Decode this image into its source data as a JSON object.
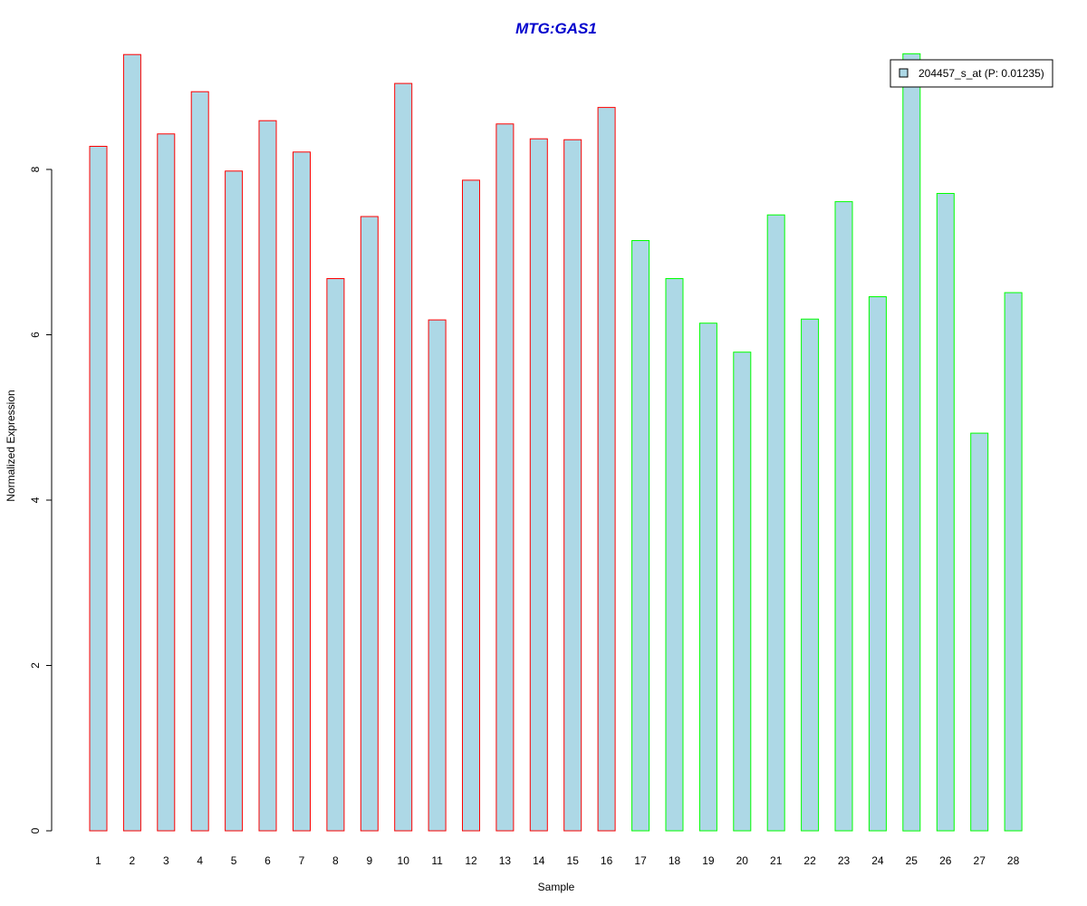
{
  "chart_data": {
    "type": "bar",
    "title": "MTG:GAS1",
    "xlabel": "Sample",
    "ylabel": "Normalized Expression",
    "categories": [
      "1",
      "2",
      "3",
      "4",
      "5",
      "6",
      "7",
      "8",
      "9",
      "10",
      "11",
      "12",
      "13",
      "14",
      "15",
      "16",
      "17",
      "18",
      "19",
      "20",
      "21",
      "22",
      "23",
      "24",
      "25",
      "26",
      "27",
      "28"
    ],
    "series": [
      {
        "name": "204457_s_at (P: 0.01235)",
        "values": [
          8.28,
          9.39,
          8.43,
          8.94,
          7.98,
          8.59,
          8.21,
          6.68,
          7.43,
          9.04,
          6.18,
          7.87,
          8.55,
          8.37,
          8.36,
          8.75,
          7.14,
          6.68,
          6.14,
          5.79,
          7.45,
          6.19,
          7.61,
          6.46,
          9.4,
          7.71,
          4.81,
          6.51
        ]
      }
    ],
    "group_outline": [
      "red",
      "red",
      "red",
      "red",
      "red",
      "red",
      "red",
      "red",
      "red",
      "red",
      "red",
      "red",
      "red",
      "red",
      "red",
      "red",
      "green",
      "green",
      "green",
      "green",
      "green",
      "green",
      "green",
      "green",
      "green",
      "green",
      "green",
      "green"
    ],
    "colors": {
      "fill": "#add8e6",
      "outline_red": "#ff0000",
      "outline_green": "#00ff00",
      "title": "#0000cd"
    },
    "yticks": [
      "0",
      "2",
      "4",
      "6",
      "8"
    ],
    "ylim": [
      0,
      9.4
    ],
    "legend_position": "top-right",
    "grid": false
  }
}
